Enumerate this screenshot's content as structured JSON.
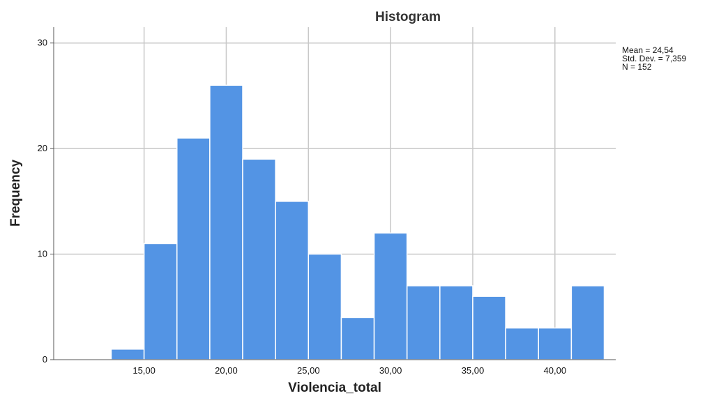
{
  "chart_data": {
    "type": "bar",
    "title": "Histogram",
    "xlabel": "Violencia_total",
    "ylabel": "Frequency",
    "x_ticks": [
      "15,00",
      "20,00",
      "25,00",
      "30,00",
      "35,00",
      "40,00"
    ],
    "x_tick_values": [
      15,
      20,
      25,
      30,
      35,
      40
    ],
    "y_ticks": [
      "0",
      "10",
      "20",
      "30"
    ],
    "y_tick_values": [
      0,
      10,
      20,
      30
    ],
    "xlim": [
      9.5,
      43.7
    ],
    "ylim": [
      0,
      31.5
    ],
    "bin_width": 2,
    "bins": [
      {
        "start": 13,
        "end": 15,
        "count": 1
      },
      {
        "start": 15,
        "end": 17,
        "count": 11
      },
      {
        "start": 17,
        "end": 19,
        "count": 21
      },
      {
        "start": 19,
        "end": 21,
        "count": 26
      },
      {
        "start": 21,
        "end": 23,
        "count": 19
      },
      {
        "start": 23,
        "end": 25,
        "count": 15
      },
      {
        "start": 25,
        "end": 27,
        "count": 10
      },
      {
        "start": 27,
        "end": 29,
        "count": 4
      },
      {
        "start": 29,
        "end": 31,
        "count": 12
      },
      {
        "start": 31,
        "end": 33,
        "count": 7
      },
      {
        "start": 33,
        "end": 35,
        "count": 7
      },
      {
        "start": 35,
        "end": 37,
        "count": 6
      },
      {
        "start": 37,
        "end": 39,
        "count": 3
      },
      {
        "start": 39,
        "end": 41,
        "count": 3
      },
      {
        "start": 41,
        "end": 43,
        "count": 7
      }
    ],
    "grid": true,
    "bar_color": "#5394e4",
    "stats": {
      "mean_line": "Mean = 24,54",
      "std_line": "Std. Dev. = 7,359",
      "n_line": "N = 152"
    }
  }
}
